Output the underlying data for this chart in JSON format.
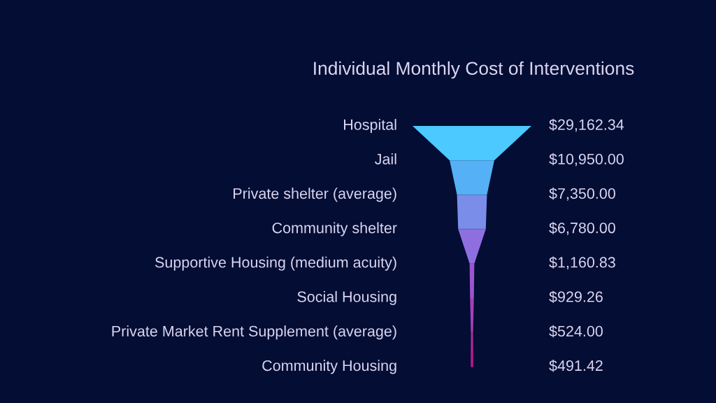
{
  "chart_data": {
    "type": "other",
    "title": "Individual Monthly Cost of Interventions",
    "categories": [
      "Hospital",
      "Jail",
      "Private shelter (average)",
      "Community shelter",
      "Supportive Housing (medium acuity)",
      "Social Housing",
      "Private Market Rent Supplement (average)",
      "Community Housing"
    ],
    "values": [
      29162.34,
      10950.0,
      7350.0,
      6780.0,
      1160.83,
      929.26,
      524.0,
      491.42
    ],
    "value_labels": [
      "$29,162.34",
      "$10,950.00",
      "$7,350.00",
      "$6,780.00",
      "$1,160.83",
      "$929.26",
      "$524.00",
      "$491.42"
    ],
    "colors": [
      "#4cc9fe",
      "#56b0f5",
      "#7a8de8",
      "#8f6fe0",
      "#9a55d0",
      "#a640b8",
      "#b52aa2",
      "#c0168c"
    ],
    "data_labels": true
  }
}
